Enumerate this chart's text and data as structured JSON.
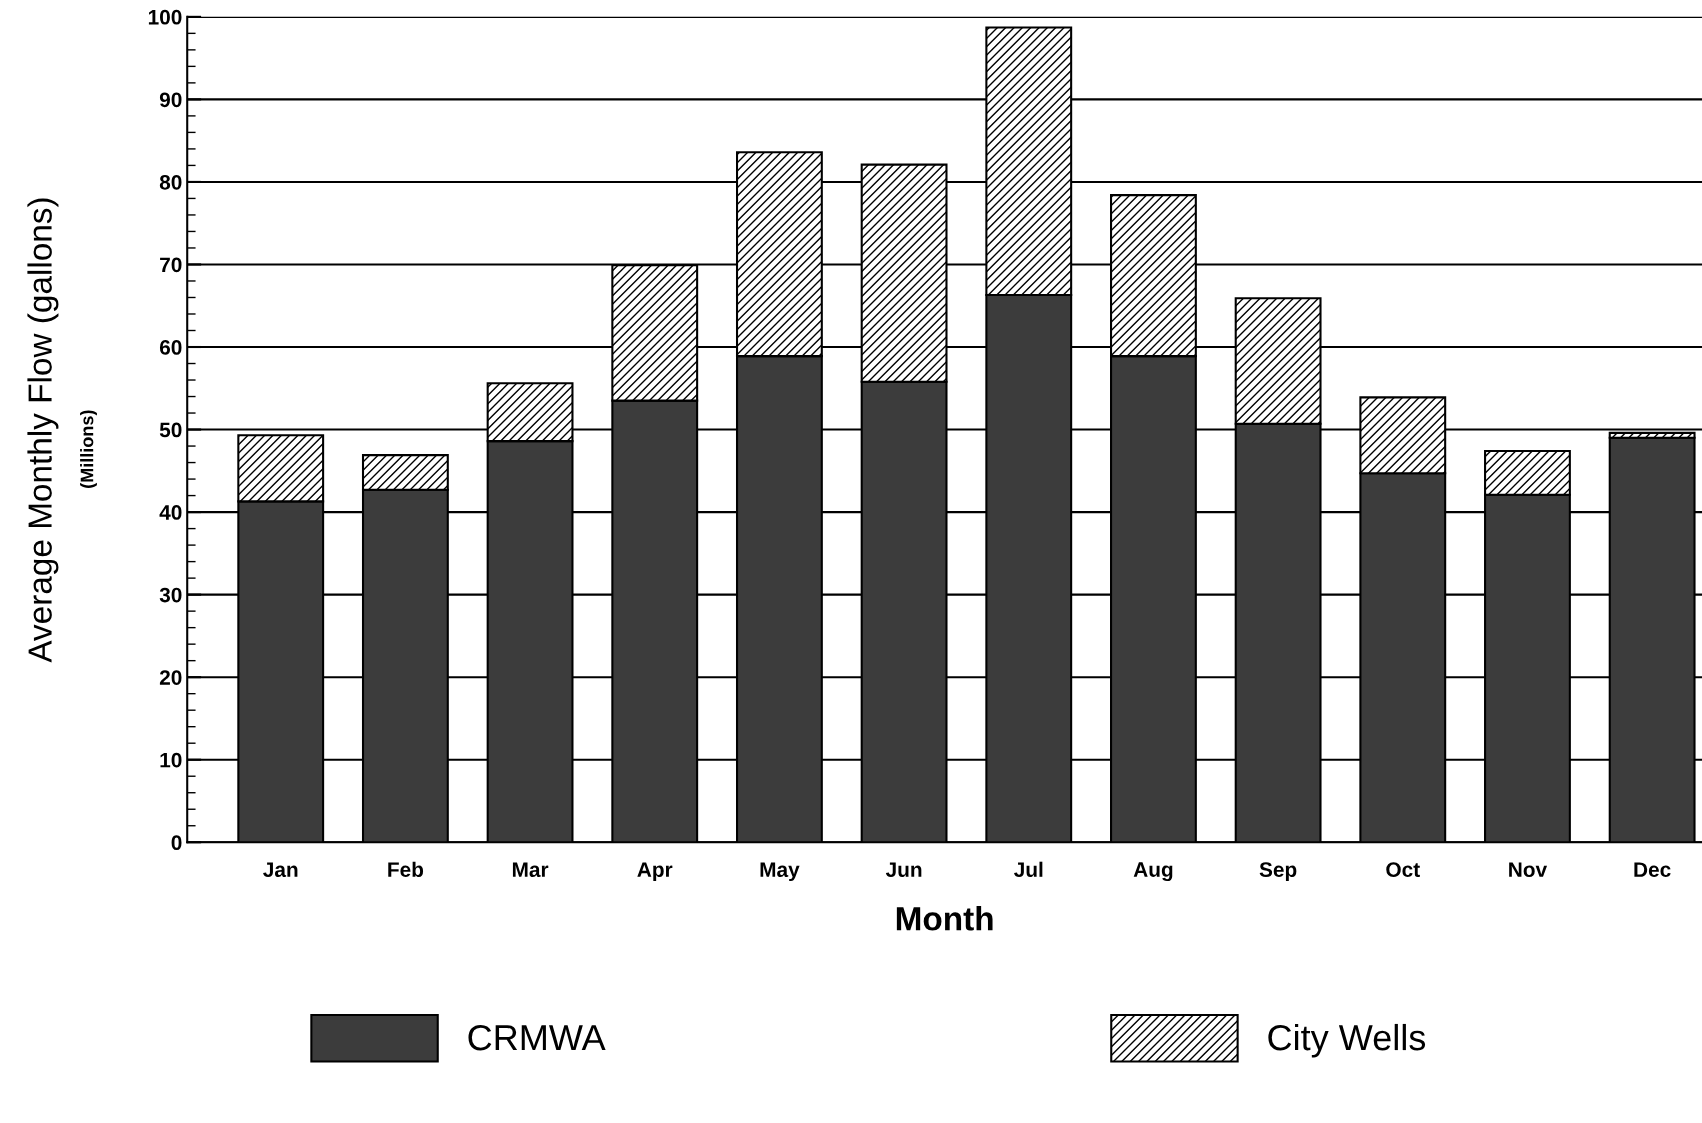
{
  "chart_data": {
    "type": "bar",
    "stacked": true,
    "xlabel": "Month",
    "ylabel": "Average Monthly Flow (gallons)",
    "annotations": [
      "(Millions)"
    ],
    "categories": [
      "Jan",
      "Feb",
      "Mar",
      "Apr",
      "May",
      "Jun",
      "Jul",
      "Aug",
      "Sep",
      "Oct",
      "Nov",
      "Dec"
    ],
    "series": [
      {
        "name": "CRMWA",
        "color": "#3c3c3c",
        "values": [
          41.3,
          42.7,
          48.6,
          53.5,
          58.9,
          55.8,
          66.3,
          58.9,
          50.7,
          44.7,
          42.1,
          49.0
        ]
      },
      {
        "name": "City Wells",
        "color": "#000000",
        "values": [
          8.0,
          4.2,
          7.0,
          16.4,
          24.7,
          26.3,
          32.4,
          19.5,
          15.2,
          9.2,
          5.3,
          0.6
        ]
      }
    ],
    "ylim": [
      0,
      100
    ],
    "yticks": [
      0,
      10,
      20,
      30,
      40,
      50,
      60,
      70,
      80,
      90,
      100
    ],
    "grid": "y",
    "legend": "bottom"
  }
}
